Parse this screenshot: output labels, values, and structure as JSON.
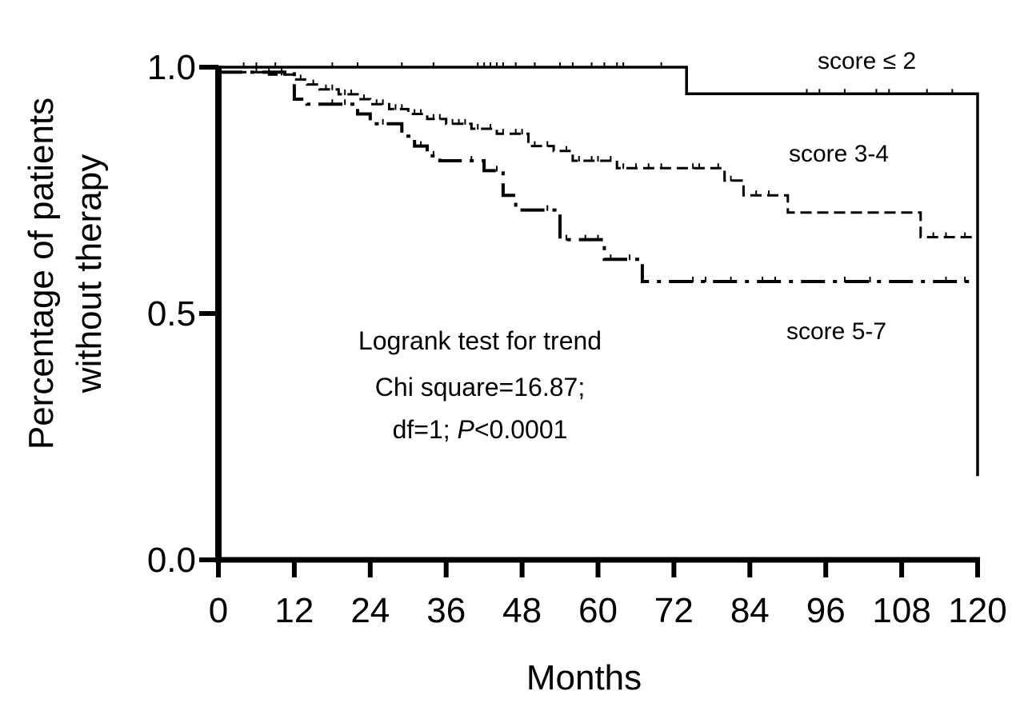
{
  "chart_data": {
    "type": "line",
    "subtype": "kaplan-meier",
    "title": "",
    "xlabel": "Months",
    "ylabel_lines": [
      "Percentage of patients",
      "without therapy"
    ],
    "xlim": [
      0,
      120
    ],
    "ylim": [
      0,
      1
    ],
    "xticks": [
      0,
      12,
      24,
      36,
      48,
      60,
      72,
      84,
      96,
      108,
      120
    ],
    "xtick_labels": [
      "0",
      "12",
      "24",
      "36",
      "48",
      "60",
      "72",
      "84",
      "96",
      "108",
      "120"
    ],
    "yticks": [
      0.0,
      0.5,
      1.0
    ],
    "ytick_labels": [
      "0.0",
      "0.5",
      "1.0"
    ],
    "grid": false,
    "annotation": {
      "line1": "Logrank test for trend",
      "line2": "Chi square=16.87;",
      "line3_prefix": "df=1; ",
      "line3_italic": "P",
      "line3_suffix": "<0.0001"
    },
    "series": [
      {
        "name": "score ≤ 2",
        "label": "score ≤ 2",
        "style": "solid",
        "points": [
          [
            0,
            1.0
          ],
          [
            74,
            1.0
          ],
          [
            74,
            0.946
          ],
          [
            120,
            0.946
          ],
          [
            120,
            0.17
          ]
        ],
        "censored": [
          [
            4,
            1.0
          ],
          [
            6,
            1.0
          ],
          [
            9,
            1.0
          ],
          [
            18,
            1.0
          ],
          [
            22,
            1.0
          ],
          [
            29,
            1.0
          ],
          [
            34,
            1.0
          ],
          [
            41,
            1.0
          ],
          [
            42,
            1.0
          ],
          [
            43,
            1.0
          ],
          [
            44,
            1.0
          ],
          [
            45,
            1.0
          ],
          [
            47,
            1.0
          ],
          [
            50,
            1.0
          ],
          [
            54,
            1.0
          ],
          [
            56,
            1.0
          ],
          [
            59,
            1.0
          ],
          [
            61,
            1.0
          ],
          [
            63,
            1.0
          ],
          [
            64,
            1.0
          ],
          [
            70,
            1.0
          ],
          [
            93,
            0.946
          ],
          [
            95,
            0.946
          ],
          [
            99,
            0.946
          ],
          [
            104,
            0.946
          ],
          [
            106,
            0.946
          ],
          [
            112,
            0.946
          ],
          [
            116,
            0.946
          ]
        ]
      },
      {
        "name": "score 3-4",
        "label": "score 3-4",
        "style": "dashed",
        "points": [
          [
            0,
            0.99
          ],
          [
            8,
            0.99
          ],
          [
            8,
            0.985
          ],
          [
            12,
            0.985
          ],
          [
            12,
            0.975
          ],
          [
            14,
            0.975
          ],
          [
            14,
            0.965
          ],
          [
            16,
            0.965
          ],
          [
            16,
            0.955
          ],
          [
            19,
            0.955
          ],
          [
            19,
            0.945
          ],
          [
            22,
            0.945
          ],
          [
            22,
            0.935
          ],
          [
            24,
            0.935
          ],
          [
            24,
            0.925
          ],
          [
            27,
            0.925
          ],
          [
            27,
            0.915
          ],
          [
            30,
            0.915
          ],
          [
            30,
            0.905
          ],
          [
            33,
            0.905
          ],
          [
            33,
            0.895
          ],
          [
            36,
            0.895
          ],
          [
            36,
            0.885
          ],
          [
            40,
            0.885
          ],
          [
            40,
            0.875
          ],
          [
            44,
            0.875
          ],
          [
            44,
            0.865
          ],
          [
            49,
            0.865
          ],
          [
            49,
            0.84
          ],
          [
            53,
            0.84
          ],
          [
            53,
            0.83
          ],
          [
            56,
            0.83
          ],
          [
            56,
            0.81
          ],
          [
            63,
            0.81
          ],
          [
            63,
            0.795
          ],
          [
            80,
            0.795
          ],
          [
            80,
            0.77
          ],
          [
            83,
            0.77
          ],
          [
            83,
            0.74
          ],
          [
            90,
            0.74
          ],
          [
            90,
            0.705
          ],
          [
            111,
            0.705
          ],
          [
            111,
            0.655
          ],
          [
            120,
            0.655
          ]
        ],
        "censored": [
          [
            6,
            0.99
          ],
          [
            10,
            0.985
          ],
          [
            13,
            0.975
          ],
          [
            15,
            0.965
          ],
          [
            17,
            0.955
          ],
          [
            18,
            0.955
          ],
          [
            20,
            0.945
          ],
          [
            21,
            0.945
          ],
          [
            23,
            0.935
          ],
          [
            25,
            0.925
          ],
          [
            26,
            0.925
          ],
          [
            28,
            0.915
          ],
          [
            29,
            0.915
          ],
          [
            31,
            0.905
          ],
          [
            32,
            0.905
          ],
          [
            34,
            0.895
          ],
          [
            35,
            0.895
          ],
          [
            37,
            0.885
          ],
          [
            38,
            0.885
          ],
          [
            39,
            0.885
          ],
          [
            41,
            0.875
          ],
          [
            43,
            0.875
          ],
          [
            45,
            0.865
          ],
          [
            47,
            0.865
          ],
          [
            48,
            0.865
          ],
          [
            50,
            0.84
          ],
          [
            52,
            0.84
          ],
          [
            55,
            0.83
          ],
          [
            57,
            0.81
          ],
          [
            59,
            0.81
          ],
          [
            60,
            0.81
          ],
          [
            62,
            0.81
          ],
          [
            64,
            0.795
          ],
          [
            66,
            0.795
          ],
          [
            68,
            0.795
          ],
          [
            70,
            0.795
          ],
          [
            75,
            0.795
          ],
          [
            76,
            0.795
          ],
          [
            79,
            0.795
          ],
          [
            81,
            0.77
          ],
          [
            85,
            0.74
          ],
          [
            87,
            0.74
          ],
          [
            113,
            0.655
          ],
          [
            115,
            0.655
          ],
          [
            118,
            0.655
          ]
        ]
      },
      {
        "name": "score 5-7",
        "label": "score 5-7",
        "style": "dash-dot",
        "points": [
          [
            0,
            0.99
          ],
          [
            12,
            0.99
          ],
          [
            12,
            0.935
          ],
          [
            14,
            0.935
          ],
          [
            14,
            0.925
          ],
          [
            22,
            0.925
          ],
          [
            22,
            0.905
          ],
          [
            24,
            0.905
          ],
          [
            24,
            0.885
          ],
          [
            29,
            0.885
          ],
          [
            29,
            0.86
          ],
          [
            31,
            0.86
          ],
          [
            31,
            0.84
          ],
          [
            33,
            0.84
          ],
          [
            33,
            0.82
          ],
          [
            35,
            0.82
          ],
          [
            35,
            0.81
          ],
          [
            42,
            0.81
          ],
          [
            42,
            0.79
          ],
          [
            45,
            0.79
          ],
          [
            45,
            0.74
          ],
          [
            47,
            0.74
          ],
          [
            47,
            0.71
          ],
          [
            54,
            0.71
          ],
          [
            54,
            0.65
          ],
          [
            61,
            0.65
          ],
          [
            61,
            0.61
          ],
          [
            67,
            0.61
          ],
          [
            67,
            0.565
          ],
          [
            120,
            0.565
          ]
        ],
        "censored": [
          [
            8,
            0.99
          ],
          [
            10,
            0.99
          ],
          [
            18,
            0.925
          ],
          [
            20,
            0.925
          ],
          [
            26,
            0.885
          ],
          [
            32,
            0.84
          ],
          [
            34,
            0.82
          ],
          [
            40,
            0.81
          ],
          [
            44,
            0.79
          ],
          [
            52,
            0.71
          ],
          [
            55,
            0.65
          ],
          [
            58,
            0.65
          ],
          [
            60,
            0.65
          ],
          [
            62,
            0.61
          ],
          [
            65,
            0.61
          ],
          [
            75,
            0.565
          ],
          [
            77,
            0.565
          ],
          [
            81,
            0.565
          ],
          [
            86,
            0.565
          ],
          [
            88,
            0.565
          ],
          [
            99,
            0.565
          ],
          [
            103,
            0.565
          ],
          [
            115,
            0.565
          ],
          [
            118,
            0.565
          ]
        ]
      }
    ]
  }
}
